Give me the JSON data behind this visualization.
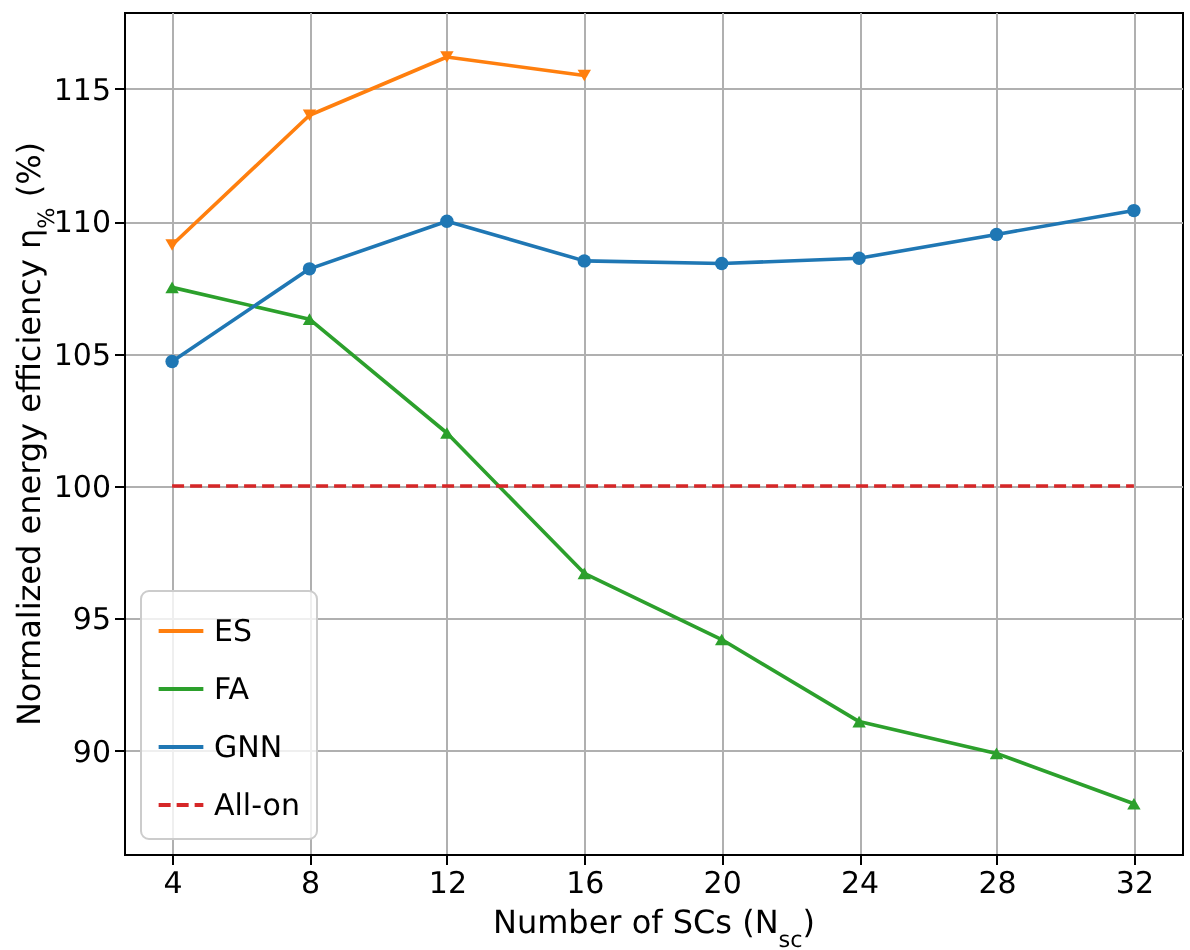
{
  "chart_data": {
    "type": "line",
    "xlabel": "Number of SCs (N$_{sc}$)",
    "ylabel": "Normalized energy efficiency η$_{%}$ (%)",
    "x": [
      4,
      8,
      12,
      16,
      20,
      24,
      28,
      32
    ],
    "series": [
      {
        "name": "ES",
        "color": "#ff7f0e",
        "marker": "triangle-down",
        "line_style": "solid",
        "x": [
          4,
          8,
          12,
          16
        ],
        "values": [
          109.1,
          114.0,
          116.2,
          115.5
        ]
      },
      {
        "name": "FA",
        "color": "#2ca02c",
        "marker": "triangle",
        "line_style": "solid",
        "values": [
          107.5,
          106.3,
          102.0,
          96.7,
          94.2,
          91.1,
          89.9,
          88.0
        ]
      },
      {
        "name": "GNN",
        "color": "#1f77b4",
        "marker": "circle",
        "line_style": "solid",
        "values": [
          104.7,
          108.2,
          110.0,
          108.5,
          108.4,
          108.6,
          109.5,
          110.4
        ]
      },
      {
        "name": "All-on",
        "color": "#d62728",
        "marker": "none",
        "line_style": "dashed",
        "values": [
          100,
          100,
          100,
          100,
          100,
          100,
          100,
          100
        ]
      }
    ],
    "xlim": [
      2.6,
      33.4
    ],
    "ylim": [
      86.1,
      117.9
    ],
    "xticks": [
      4,
      8,
      12,
      16,
      20,
      24,
      28,
      32
    ],
    "yticks": [
      90,
      95,
      100,
      105,
      110,
      115
    ],
    "grid": true,
    "legend": "bottom left"
  }
}
